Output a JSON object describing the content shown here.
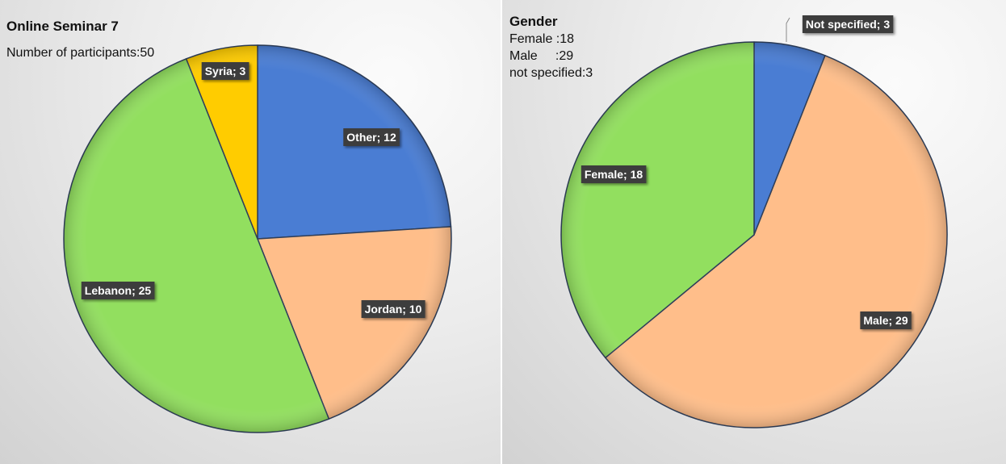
{
  "chart_data": [
    {
      "type": "pie",
      "title": "Online Seminar 7",
      "info": [
        "Number of participants:50"
      ],
      "slices": [
        {
          "label": "Other",
          "value": 12,
          "color": "#4a7dd3",
          "data_label": "Other; 12"
        },
        {
          "label": "Jordan",
          "value": 10,
          "color": "#ffbe8a",
          "data_label": "Jordan; 10"
        },
        {
          "label": "Lebanon",
          "value": 25,
          "color": "#92df5f",
          "data_label": "Lebanon; 25"
        },
        {
          "label": "Syria",
          "value": 3,
          "color": "#ffcc00",
          "data_label": "Syria; 3"
        }
      ]
    },
    {
      "type": "pie",
      "title": "Gender",
      "info": [
        "Female :18",
        "Male     :29",
        "not specified:3"
      ],
      "slices": [
        {
          "label": "Not specified",
          "value": 3,
          "color": "#4a7dd3",
          "data_label": "Not specified; 3"
        },
        {
          "label": "Male",
          "value": 29,
          "color": "#ffbe8a",
          "data_label": "Male; 29"
        },
        {
          "label": "Female",
          "value": 18,
          "color": "#92df5f",
          "data_label": "Female; 18"
        }
      ]
    }
  ]
}
